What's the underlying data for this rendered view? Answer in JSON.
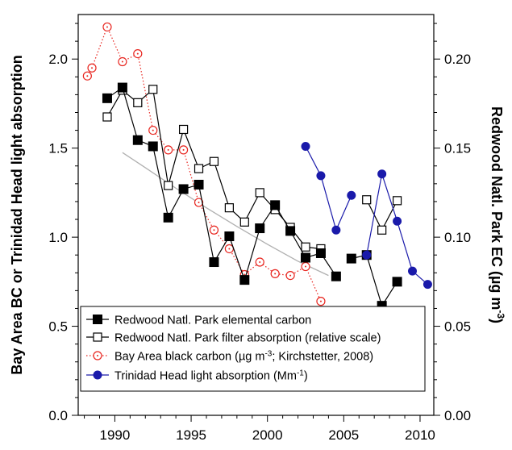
{
  "chart_data": {
    "type": "line",
    "title": "",
    "xlabel": "",
    "ylabel_left": "Bay Area BC or Trinidad Head light absorption",
    "ylabel_right_main": "Redwood Natl. Park EC (µg m",
    "ylabel_right_sup": "-3",
    "ylabel_right_end": ")",
    "xlim": [
      1987.6,
      2010.9
    ],
    "ylim_left": [
      0,
      2.25
    ],
    "ylim_right": [
      0,
      0.225
    ],
    "x_ticks": [
      {
        "value": 1990,
        "label": "1990"
      },
      {
        "value": 1995,
        "label": "1995"
      },
      {
        "value": 2000,
        "label": "2000"
      },
      {
        "value": 2005,
        "label": "2005"
      },
      {
        "value": 2010,
        "label": "2010"
      }
    ],
    "y_left_ticks": [
      {
        "value": 0.0,
        "label": "0.0"
      },
      {
        "value": 0.5,
        "label": "0.5"
      },
      {
        "value": 1.0,
        "label": "1.0"
      },
      {
        "value": 1.5,
        "label": "1.5"
      },
      {
        "value": 2.0,
        "label": "2.0"
      }
    ],
    "y_right_ticks": [
      {
        "value": 0.0,
        "label": "0.00"
      },
      {
        "value": 0.05,
        "label": "0.05"
      },
      {
        "value": 0.1,
        "label": "0.10"
      },
      {
        "value": 0.15,
        "label": "0.15"
      },
      {
        "value": 0.2,
        "label": "0.20"
      }
    ],
    "legend_position": "bottom-left",
    "series": [
      {
        "name": "Redwood Natl. Park elemental carbon",
        "color": "#000000",
        "marker": "filled-square",
        "line_style": "solid",
        "segments": [
          [
            {
              "x": 1989.5,
              "y": 1.78
            },
            {
              "x": 1990.5,
              "y": 1.84
            },
            {
              "x": 1991.5,
              "y": 1.545
            },
            {
              "x": 1992.5,
              "y": 1.51
            },
            {
              "x": 1993.5,
              "y": 1.11
            },
            {
              "x": 1994.5,
              "y": 1.27
            },
            {
              "x": 1995.5,
              "y": 1.295
            },
            {
              "x": 1996.5,
              "y": 0.86
            },
            {
              "x": 1997.5,
              "y": 1.005
            },
            {
              "x": 1998.5,
              "y": 0.76
            },
            {
              "x": 1999.5,
              "y": 1.05
            },
            {
              "x": 2000.5,
              "y": 1.18
            },
            {
              "x": 2001.5,
              "y": 1.035
            },
            {
              "x": 2002.5,
              "y": 0.885
            },
            {
              "x": 2003.5,
              "y": 0.91
            },
            {
              "x": 2004.5,
              "y": 0.78
            }
          ],
          [
            {
              "x": 2005.5,
              "y": 0.88
            },
            {
              "x": 2006.5,
              "y": 0.9
            },
            {
              "x": 2007.5,
              "y": 0.615
            },
            {
              "x": 2008.5,
              "y": 0.75
            }
          ]
        ]
      },
      {
        "name": "Redwood Natl. Park filter absorption (relative scale)",
        "color": "#000000",
        "marker": "open-square",
        "line_style": "solid",
        "segments": [
          [
            {
              "x": 1989.5,
              "y": 1.675
            },
            {
              "x": 1990.5,
              "y": 1.825
            },
            {
              "x": 1991.5,
              "y": 1.755
            },
            {
              "x": 1992.5,
              "y": 1.83
            },
            {
              "x": 1993.5,
              "y": 1.29
            },
            {
              "x": 1994.5,
              "y": 1.605
            },
            {
              "x": 1995.5,
              "y": 1.385
            },
            {
              "x": 1996.5,
              "y": 1.425
            },
            {
              "x": 1997.5,
              "y": 1.165
            },
            {
              "x": 1998.5,
              "y": 1.085
            },
            {
              "x": 1999.5,
              "y": 1.25
            },
            {
              "x": 2000.5,
              "y": 1.155
            },
            {
              "x": 2001.5,
              "y": 1.055
            },
            {
              "x": 2002.5,
              "y": 0.945
            },
            {
              "x": 2003.5,
              "y": 0.935
            }
          ],
          [
            {
              "x": 2006.5,
              "y": 1.21
            },
            {
              "x": 2007.5,
              "y": 1.04
            },
            {
              "x": 2008.5,
              "y": 1.205
            }
          ]
        ]
      },
      {
        "name": "Bay Area black carbon (µg m",
        "name_sup": "-3",
        "name_end": "; Kirchstetter, 2008)",
        "color": "#e8251f",
        "marker": "open-circle-dot",
        "line_style": "dotted",
        "segments": [
          [
            {
              "x": 1988.2,
              "y": 1.905
            },
            {
              "x": 1988.5,
              "y": 1.95
            },
            {
              "x": 1989.5,
              "y": 2.18
            },
            {
              "x": 1990.5,
              "y": 1.985
            },
            {
              "x": 1991.5,
              "y": 2.03
            },
            {
              "x": 1992.5,
              "y": 1.6
            },
            {
              "x": 1993.5,
              "y": 1.49
            },
            {
              "x": 1994.5,
              "y": 1.49
            },
            {
              "x": 1995.5,
              "y": 1.195
            },
            {
              "x": 1996.5,
              "y": 1.04
            },
            {
              "x": 1997.5,
              "y": 0.935
            },
            {
              "x": 1998.5,
              "y": 0.79
            },
            {
              "x": 1999.5,
              "y": 0.86
            },
            {
              "x": 2000.5,
              "y": 0.795
            },
            {
              "x": 2001.5,
              "y": 0.785
            },
            {
              "x": 2002.5,
              "y": 0.835
            },
            {
              "x": 2003.5,
              "y": 0.64
            }
          ]
        ]
      },
      {
        "name": "Trinidad Head light absorption (Mm",
        "name_sup": "-1",
        "name_end": ")",
        "color": "#1a1aaa",
        "marker": "filled-circle",
        "line_style": "solid",
        "segments": [
          [
            {
              "x": 2002.5,
              "y": 1.51
            },
            {
              "x": 2003.5,
              "y": 1.345
            },
            {
              "x": 2004.5,
              "y": 1.04
            },
            {
              "x": 2005.5,
              "y": 1.235
            }
          ],
          [
            {
              "x": 2006.5,
              "y": 0.9
            },
            {
              "x": 2007.5,
              "y": 1.355
            },
            {
              "x": 2008.5,
              "y": 1.09
            },
            {
              "x": 2009.5,
              "y": 0.81
            },
            {
              "x": 2010.5,
              "y": 0.735
            }
          ]
        ]
      },
      {
        "color": "#b0b0b0",
        "marker": "none",
        "line_style": "solid",
        "segments": [
          [
            {
              "x": 1990.5,
              "y": 1.475
            },
            {
              "x": 1992,
              "y": 1.39
            },
            {
              "x": 1994,
              "y": 1.275
            },
            {
              "x": 1996,
              "y": 1.165
            },
            {
              "x": 1998,
              "y": 1.06
            },
            {
              "x": 2000,
              "y": 0.96
            },
            {
              "x": 2002,
              "y": 0.865
            },
            {
              "x": 2004,
              "y": 0.785
            }
          ]
        ]
      }
    ]
  }
}
